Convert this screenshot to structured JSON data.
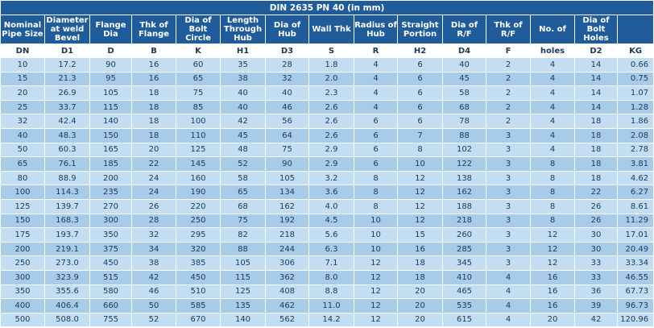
{
  "title": "DIN 2635 PN 40 (in mm)",
  "headers": [
    "Nominal Pipe Size",
    "Diameter at weld Bevel",
    "Flange Dia",
    "Thk of Flange",
    "Dia of Bolt Circle",
    "Length Through Hub",
    "Dia of Hub",
    "Wall Thk",
    "Radius of Hub",
    "Straight Portion",
    "Dia of R/F",
    "Thk of R/F",
    "No. of",
    "Dia of Bolt Holes",
    ""
  ],
  "symbols": [
    "DN",
    "D1",
    "D",
    "B",
    "K",
    "H1",
    "D3",
    "S",
    "R",
    "H2",
    "D4",
    "F",
    "holes",
    "D2",
    "KG"
  ],
  "rows": [
    [
      "10",
      "17.2",
      "90",
      "16",
      "60",
      "35",
      "28",
      "1.8",
      "4",
      "6",
      "40",
      "2",
      "4",
      "14",
      "0.66"
    ],
    [
      "15",
      "21.3",
      "95",
      "16",
      "65",
      "38",
      "32",
      "2.0",
      "4",
      "6",
      "45",
      "2",
      "4",
      "14",
      "0.75"
    ],
    [
      "20",
      "26.9",
      "105",
      "18",
      "75",
      "40",
      "40",
      "2.3",
      "4",
      "6",
      "58",
      "2",
      "4",
      "14",
      "1.07"
    ],
    [
      "25",
      "33.7",
      "115",
      "18",
      "85",
      "40",
      "46",
      "2.6",
      "4",
      "6",
      "68",
      "2",
      "4",
      "14",
      "1.28"
    ],
    [
      "32",
      "42.4",
      "140",
      "18",
      "100",
      "42",
      "56",
      "2.6",
      "6",
      "6",
      "78",
      "2",
      "4",
      "18",
      "1.86"
    ],
    [
      "40",
      "48.3",
      "150",
      "18",
      "110",
      "45",
      "64",
      "2.6",
      "6",
      "7",
      "88",
      "3",
      "4",
      "18",
      "2.08"
    ],
    [
      "50",
      "60.3",
      "165",
      "20",
      "125",
      "48",
      "75",
      "2.9",
      "6",
      "8",
      "102",
      "3",
      "4",
      "18",
      "2.78"
    ],
    [
      "65",
      "76.1",
      "185",
      "22",
      "145",
      "52",
      "90",
      "2.9",
      "6",
      "10",
      "122",
      "3",
      "8",
      "18",
      "3.81"
    ],
    [
      "80",
      "88.9",
      "200",
      "24",
      "160",
      "58",
      "105",
      "3.2",
      "8",
      "12",
      "138",
      "3",
      "8",
      "18",
      "4.62"
    ],
    [
      "100",
      "114.3",
      "235",
      "24",
      "190",
      "65",
      "134",
      "3.6",
      "8",
      "12",
      "162",
      "3",
      "8",
      "22",
      "6.27"
    ],
    [
      "125",
      "139.7",
      "270",
      "26",
      "220",
      "68",
      "162",
      "4.0",
      "8",
      "12",
      "188",
      "3",
      "8",
      "26",
      "8.61"
    ],
    [
      "150",
      "168.3",
      "300",
      "28",
      "250",
      "75",
      "192",
      "4.5",
      "10",
      "12",
      "218",
      "3",
      "8",
      "26",
      "11.29"
    ],
    [
      "175",
      "193.7",
      "350",
      "32",
      "295",
      "82",
      "218",
      "5.6",
      "10",
      "15",
      "260",
      "3",
      "12",
      "30",
      "17.01"
    ],
    [
      "200",
      "219.1",
      "375",
      "34",
      "320",
      "88",
      "244",
      "6.3",
      "10",
      "16",
      "285",
      "3",
      "12",
      "30",
      "20.49"
    ],
    [
      "250",
      "273.0",
      "450",
      "38",
      "385",
      "105",
      "306",
      "7.1",
      "12",
      "18",
      "345",
      "3",
      "12",
      "33",
      "33.34"
    ],
    [
      "300",
      "323.9",
      "515",
      "42",
      "450",
      "115",
      "362",
      "8.0",
      "12",
      "18",
      "410",
      "4",
      "16",
      "33",
      "46.55"
    ],
    [
      "350",
      "355.6",
      "580",
      "46",
      "510",
      "125",
      "408",
      "8.8",
      "12",
      "20",
      "465",
      "4",
      "16",
      "36",
      "67.73"
    ],
    [
      "400",
      "406.4",
      "660",
      "50",
      "585",
      "135",
      "462",
      "11.0",
      "12",
      "20",
      "535",
      "4",
      "16",
      "39",
      "96.73"
    ],
    [
      "500",
      "508.0",
      "755",
      "52",
      "670",
      "140",
      "562",
      "14.2",
      "12",
      "20",
      "615",
      "4",
      "20",
      "42",
      "120.96"
    ]
  ]
}
